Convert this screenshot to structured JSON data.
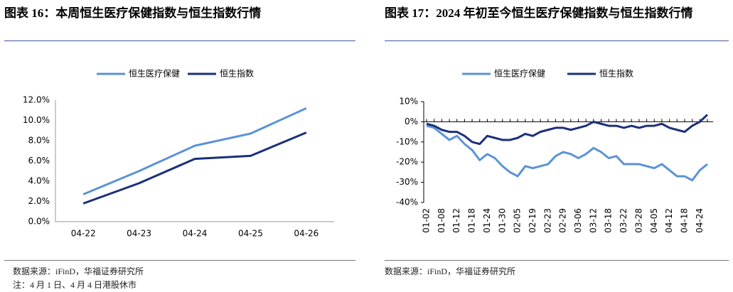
{
  "chart_data": [
    {
      "type": "line",
      "title": "图表 16：本周恒生医疗保健指数与恒生指数行情",
      "categories": [
        "04-22",
        "04-23",
        "04-24",
        "04-25",
        "04-26"
      ],
      "series": [
        {
          "name": "恒生医疗保健",
          "color": "#5b93d6",
          "values": [
            2.7,
            5.0,
            7.5,
            8.7,
            11.2
          ]
        },
        {
          "name": "恒生指数",
          "color": "#1b2f7c",
          "values": [
            1.8,
            3.8,
            6.2,
            6.5,
            8.8
          ]
        }
      ],
      "ylim": [
        0,
        12
      ],
      "yticks": [
        {
          "value": 0,
          "label": "0.0%"
        },
        {
          "value": 2,
          "label": "2.0%"
        },
        {
          "value": 4,
          "label": "4.0%"
        },
        {
          "value": 6,
          "label": "6.0%"
        },
        {
          "value": 8,
          "label": "8.0%"
        },
        {
          "value": 10,
          "label": "10.0%"
        },
        {
          "value": 12,
          "label": "12.0%"
        }
      ],
      "source": "数据来源：iFinD，华福证券研究所",
      "note": "注：4 月 1 日、4 月 4 日港股休市"
    },
    {
      "type": "line",
      "title": "图表 17：2024 年初至今恒生医疗保健指数与恒生指数行情",
      "categories": [
        "01-02",
        null,
        "01-08",
        null,
        "01-12",
        null,
        "01-18",
        null,
        "01-24",
        null,
        "01-30",
        null,
        "02-05",
        null,
        "02-19",
        null,
        "02-23",
        null,
        "02-29",
        null,
        "03-06",
        null,
        "03-12",
        null,
        "03-18",
        null,
        "03-22",
        null,
        "03-28",
        null,
        "04-05",
        null,
        "04-12",
        null,
        "04-18",
        null,
        "04-24",
        null
      ],
      "series": [
        {
          "name": "恒生医疗保健",
          "color": "#5b93d6",
          "values": [
            -2,
            -3,
            -6,
            -9,
            -7,
            -11,
            -14,
            -19,
            -16,
            -18,
            -22,
            -25,
            -27,
            -22,
            -23,
            -22,
            -21,
            -17,
            -15,
            -16,
            -18,
            -16,
            -13,
            -15,
            -18,
            -17,
            -21,
            -21,
            -21,
            -22,
            -23,
            -21,
            -24,
            -27,
            -27,
            -29,
            -24,
            -21
          ]
        },
        {
          "name": "恒生指数",
          "color": "#1b2f7c",
          "values": [
            -1,
            -2,
            -4,
            -5,
            -5,
            -7,
            -10,
            -11,
            -7,
            -8,
            -9,
            -9,
            -8,
            -6,
            -7,
            -5,
            -4,
            -3,
            -3,
            -4,
            -3,
            -2,
            0,
            -1,
            -2,
            -2,
            -3,
            -2,
            -3,
            -2,
            -2,
            -1,
            -3,
            -4,
            -5,
            -2,
            0,
            3.5
          ]
        }
      ],
      "ylim": [
        -40,
        10
      ],
      "yticks": [
        {
          "value": -40,
          "label": "-40%"
        },
        {
          "value": -30,
          "label": "-30%"
        },
        {
          "value": -20,
          "label": "-20%"
        },
        {
          "value": -10,
          "label": "-10%"
        },
        {
          "value": 0,
          "label": "0%"
        },
        {
          "value": 10,
          "label": "10%"
        }
      ],
      "source": "数据来源：iFinD，华福证券研究所"
    }
  ]
}
